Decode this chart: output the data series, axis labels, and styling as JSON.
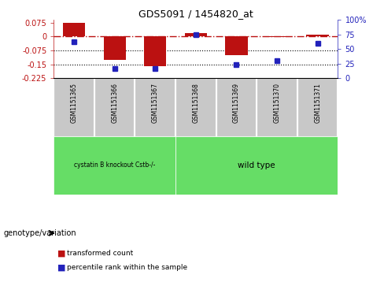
{
  "title": "GDS5091 / 1454820_at",
  "samples": [
    "GSM1151365",
    "GSM1151366",
    "GSM1151367",
    "GSM1151368",
    "GSM1151369",
    "GSM1151370",
    "GSM1151371"
  ],
  "transformed_count": [
    0.075,
    -0.128,
    -0.162,
    0.018,
    -0.1,
    -0.002,
    0.012
  ],
  "percentile_rank": [
    62,
    17,
    17,
    75,
    23,
    30,
    60
  ],
  "ylim_left": [
    -0.225,
    0.09
  ],
  "ylim_right": [
    0,
    100
  ],
  "yticks_left": [
    0.075,
    0,
    -0.075,
    -0.15,
    -0.225
  ],
  "yticks_right": [
    100,
    75,
    50,
    25,
    0
  ],
  "bar_color": "#BB1111",
  "dot_color": "#2222BB",
  "group1_samples": [
    0,
    1,
    2
  ],
  "group2_samples": [
    3,
    4,
    5,
    6
  ],
  "group1_label": "cystatin B knockout Cstb-/-",
  "group2_label": "wild type",
  "group_color": "#66DD66",
  "sample_bg": "#C8C8C8",
  "legend_label_bar": "transformed count",
  "legend_label_dot": "percentile rank within the sample",
  "genotype_label": "genotype/variation",
  "bar_width": 0.55
}
